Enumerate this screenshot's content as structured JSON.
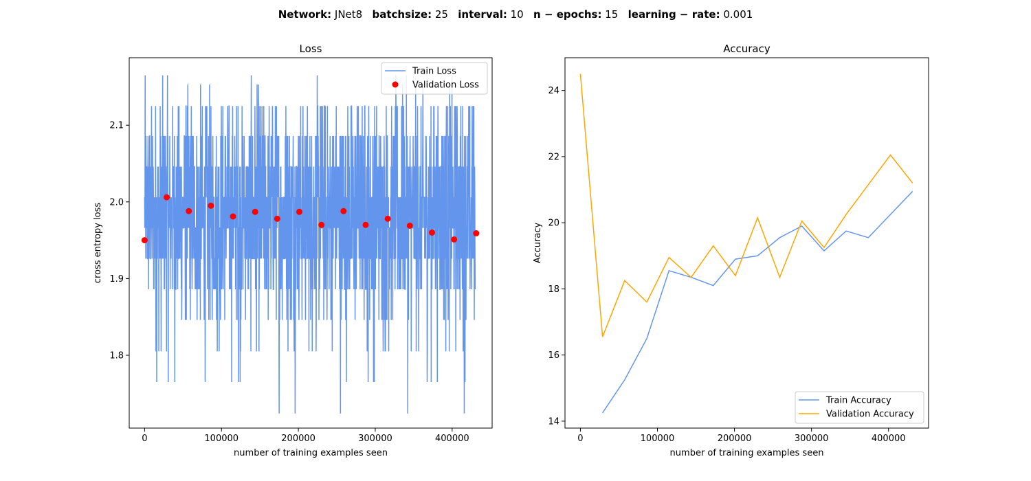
{
  "figure": {
    "title_parts": [
      {
        "key": "Network:",
        "value": "JNet8"
      },
      {
        "key": "batchsize:",
        "value": "25"
      },
      {
        "key": "interval:",
        "value": "10"
      },
      {
        "key": "n − epochs:",
        "value": "15"
      },
      {
        "key": "learning − rate:",
        "value": "0.001"
      }
    ]
  },
  "chart_data": [
    {
      "type": "line",
      "title": "Loss",
      "xlabel": "number of training examples seen",
      "ylabel": "cross entropy loss",
      "xlim": [
        -20000,
        452000
      ],
      "ylim": [
        1.705,
        2.188
      ],
      "xticks": [
        0,
        100000,
        200000,
        300000,
        400000
      ],
      "xtick_labels": [
        "0",
        "100000",
        "200000",
        "300000",
        "400000"
      ],
      "yticks": [
        1.8,
        1.9,
        2.0,
        2.1
      ],
      "ytick_labels": [
        "1.8",
        "1.9",
        "2.0",
        "2.1"
      ],
      "legend_position": "top-right",
      "grid": false,
      "series": [
        {
          "name": "Train Loss",
          "kind": "line",
          "color": "#6495ED",
          "x_start": 0,
          "x_step": 250,
          "x_end": 430000,
          "discrete_levels": [
            1.724,
            1.765,
            1.805,
            1.846,
            1.886,
            1.926,
            1.966,
            2.006,
            2.046,
            2.086,
            2.125,
            2.153,
            2.165
          ],
          "level_weights": [
            0.2,
            0.6,
            1.6,
            3,
            8,
            16,
            21,
            20,
            13,
            8,
            5,
            0.8,
            0.5
          ]
        },
        {
          "name": "Validation Loss",
          "kind": "scatter",
          "color": "#FF0000",
          "x": [
            0,
            28750,
            57500,
            86250,
            115000,
            143750,
            172500,
            201250,
            230000,
            258750,
            287500,
            316250,
            345000,
            373750,
            402500,
            431250
          ],
          "y": [
            1.95,
            2.006,
            1.988,
            1.995,
            1.981,
            1.987,
            1.978,
            1.987,
            1.97,
            1.988,
            1.97,
            1.978,
            1.969,
            1.96,
            1.951,
            1.959
          ]
        }
      ]
    },
    {
      "type": "line",
      "title": "Accuracy",
      "xlabel": "number of training examples seen",
      "ylabel": "Accuracy",
      "xlim": [
        -20000,
        452000
      ],
      "ylim": [
        13.79,
        24.99
      ],
      "xticks": [
        0,
        100000,
        200000,
        300000,
        400000
      ],
      "xtick_labels": [
        "0",
        "100000",
        "200000",
        "300000",
        "400000"
      ],
      "yticks": [
        14,
        16,
        18,
        20,
        22,
        24
      ],
      "ytick_labels": [
        "14",
        "16",
        "18",
        "20",
        "22",
        "24"
      ],
      "legend_position": "bottom-right",
      "grid": false,
      "series": [
        {
          "name": "Train Accuracy",
          "color": "#6495ED",
          "x": [
            28750,
            57500,
            86250,
            115000,
            143750,
            172500,
            201250,
            230000,
            258750,
            287500,
            316250,
            345000,
            373750,
            402500,
            431250
          ],
          "y": [
            14.25,
            15.25,
            16.5,
            18.55,
            18.35,
            18.1,
            18.9,
            19.0,
            19.55,
            19.9,
            19.15,
            19.75,
            19.55,
            20.25,
            20.95
          ]
        },
        {
          "name": "Validation Accuracy",
          "color": "#FFA500",
          "x": [
            0,
            28750,
            57500,
            86250,
            115000,
            143750,
            172500,
            201250,
            230000,
            258750,
            287500,
            316250,
            345000,
            373750,
            402500,
            431250
          ],
          "y": [
            24.5,
            16.55,
            18.25,
            17.6,
            18.95,
            18.35,
            19.3,
            18.4,
            20.15,
            18.35,
            20.05,
            19.25,
            20.25,
            21.15,
            22.05,
            21.2
          ]
        }
      ]
    }
  ]
}
